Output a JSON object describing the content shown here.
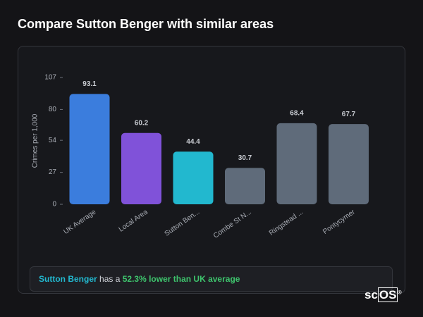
{
  "header": {
    "title": "Compare Sutton Benger with similar areas"
  },
  "chart_data": {
    "type": "bar",
    "y_label": "Crimes per 1,000",
    "categories": [
      "UK Average",
      "Local Area",
      "Sutton Ben...",
      "Combe St N...",
      "Ringstead ...",
      "Pontycymer"
    ],
    "values": [
      93.1,
      60.2,
      44.4,
      30.7,
      68.4,
      67.7
    ],
    "colors": [
      "#3b7ddd",
      "#8052d9",
      "#22b8cf",
      "#5f6b7a",
      "#5f6b7a",
      "#5f6b7a"
    ],
    "ylim": [
      0,
      107
    ],
    "yticks": [
      0,
      27,
      54,
      80,
      107
    ],
    "grid": false
  },
  "summary": {
    "area": "Sutton Benger",
    "text": "has a",
    "highlight": "52.3% lower than UK average"
  },
  "logo": {
    "text": "sc",
    "boxed": "OS",
    "mark": "®"
  }
}
